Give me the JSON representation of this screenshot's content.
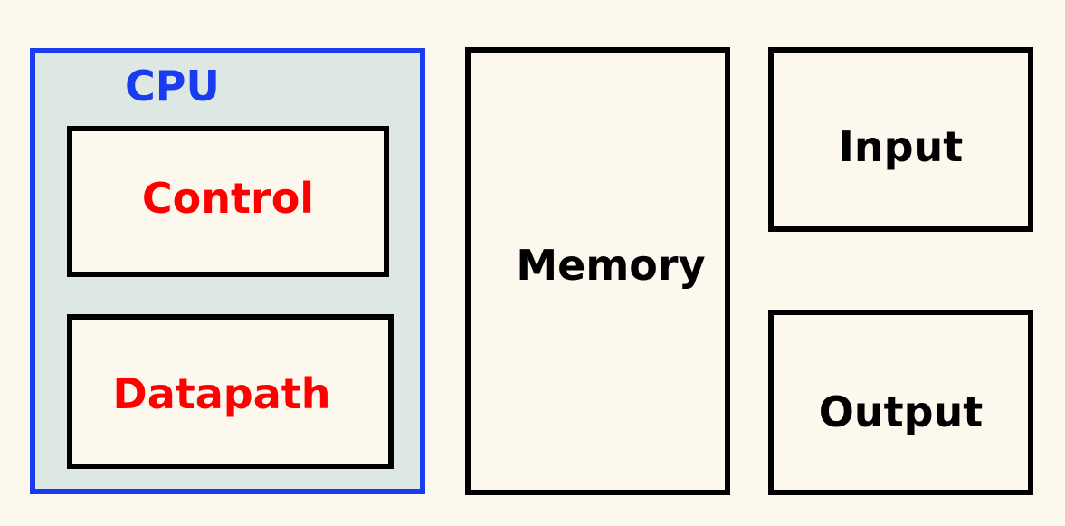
{
  "diagram": {
    "cpu": {
      "label": "CPU",
      "color": "#1a3cf0",
      "fill": "#dde8e4"
    },
    "control": {
      "label": "Control",
      "color": "#ff0000"
    },
    "datapath": {
      "label": "Datapath",
      "color": "#ff0000"
    },
    "memory": {
      "label": "Memory"
    },
    "input": {
      "label": "Input"
    },
    "output": {
      "label": "Output"
    },
    "background": "#fdf8ee"
  }
}
